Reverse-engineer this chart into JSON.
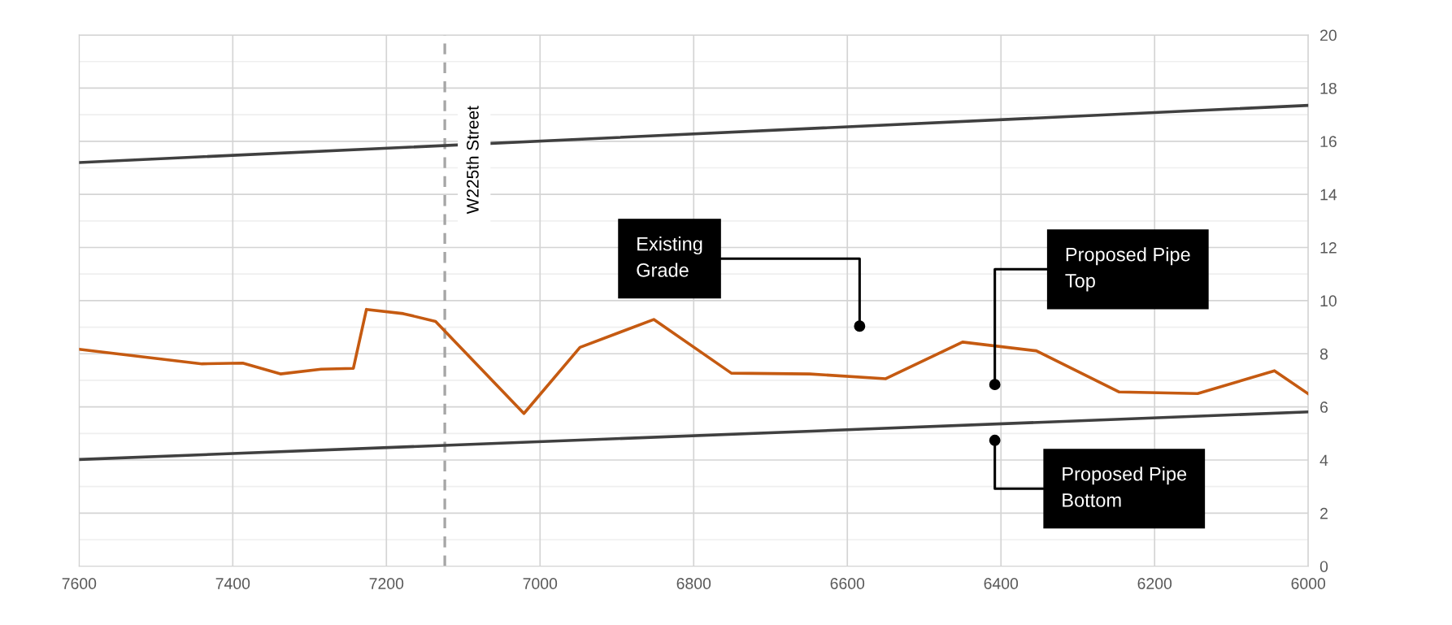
{
  "chart_data": {
    "type": "line",
    "xlim": [
      7600,
      6000
    ],
    "xticks": [
      7600,
      7400,
      7200,
      7000,
      6800,
      6600,
      6400,
      6200,
      6000
    ],
    "ylim": [
      0,
      20
    ],
    "yticks": [
      0,
      {
        "value": 1,
        "label": null
      },
      2,
      {
        "value": 3,
        "label": null
      },
      4,
      {
        "value": 5,
        "label": null
      },
      6,
      {
        "value": 7,
        "label": null
      },
      8,
      {
        "value": 9,
        "label": null
      },
      10,
      {
        "value": 11,
        "label": null
      },
      12,
      {
        "value": 13,
        "label": null
      },
      14,
      {
        "value": 15,
        "label": null
      },
      16,
      {
        "value": 17,
        "label": null
      },
      18,
      {
        "value": 19,
        "label": null
      },
      20
    ],
    "grid": true,
    "marker": "none",
    "line_style": "solid",
    "series": [
      {
        "color": "#c55a11",
        "x": [
          7600,
          7440,
          7387,
          7338,
          7285,
          7243,
          7226,
          7178,
          7136,
          7021,
          6948,
          6852,
          6751,
          6649,
          6550,
          6450,
          6354,
          6246,
          6144,
          6044,
          6000
        ],
        "values": [
          8.17,
          7.62,
          7.65,
          7.24,
          7.42,
          7.45,
          9.67,
          9.51,
          9.22,
          5.75,
          8.24,
          9.29,
          7.27,
          7.24,
          7.06,
          8.44,
          8.11,
          6.56,
          6.5,
          7.36,
          6.49
        ]
      },
      {
        "color": "#404040",
        "x": [
          7600,
          6000
        ],
        "values": [
          15.2,
          17.35
        ]
      },
      {
        "color": "#404040",
        "x": [
          7600,
          6000
        ],
        "values": [
          4.02,
          5.81
        ]
      }
    ],
    "ref_lines": [
      {
        "axis": "x",
        "value": 7124,
        "label": "W225th Street",
        "color": "#a6a6a6",
        "line_style": "dashed"
      }
    ],
    "annotations": [
      "Existing\nGrade",
      "Proposed Pipe\nTop",
      "Proposed Pipe\nBottom"
    ]
  }
}
